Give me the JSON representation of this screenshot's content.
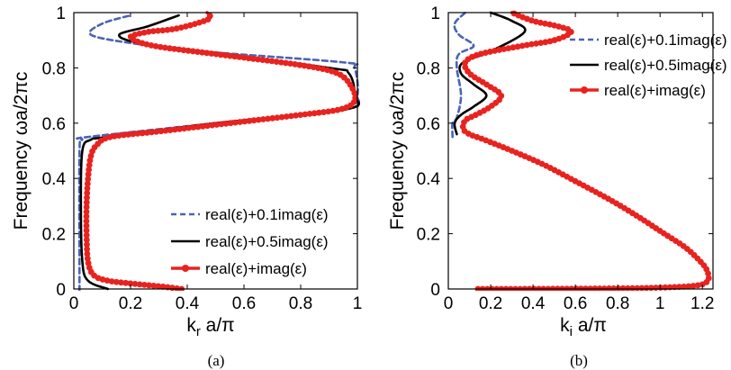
{
  "colors": {
    "dashed": "#4a64b4",
    "solid": "#000000",
    "dotted": "#e8231f"
  },
  "chart_data": [
    {
      "type": "line",
      "caption": "(a)",
      "xlabel_main": "k",
      "xlabel_sub": "r",
      "xlabel_rest": " a/π",
      "ylabel": "Frequency ωa/2πc",
      "xlim": [
        0,
        1
      ],
      "ylim": [
        0,
        1
      ],
      "xticks": [
        "0",
        "0.2",
        "0.4",
        "0.6",
        "0.8",
        "1"
      ],
      "yticks": [
        "0",
        "0.2",
        "0.4",
        "0.6",
        "0.8",
        "1"
      ],
      "legend_position": "bottom-right",
      "series": [
        {
          "name": "real(ε)+0.1imag(ε)",
          "style": "dashed",
          "points": [
            [
              0.02,
              0
            ],
            [
              0.02,
              0.05
            ],
            [
              0.02,
              0.5
            ],
            [
              0.03,
              0.54
            ],
            [
              0.05,
              0.55
            ],
            [
              0.5,
              0.6
            ],
            [
              0.96,
              0.65
            ],
            [
              1.0,
              0.7
            ],
            [
              0.99,
              0.8
            ],
            [
              0.95,
              0.82
            ],
            [
              0.45,
              0.86
            ],
            [
              0.2,
              0.89
            ],
            [
              0.06,
              0.92
            ],
            [
              0.1,
              0.96
            ],
            [
              0.2,
              0.99
            ]
          ]
        },
        {
          "name": "real(ε)+0.5imag(ε)",
          "style": "solid",
          "points": [
            [
              0.12,
              0
            ],
            [
              0.05,
              0.03
            ],
            [
              0.03,
              0.1
            ],
            [
              0.025,
              0.3
            ],
            [
              0.03,
              0.5
            ],
            [
              0.06,
              0.54
            ],
            [
              0.12,
              0.55
            ],
            [
              0.5,
              0.6
            ],
            [
              0.96,
              0.65
            ],
            [
              0.99,
              0.7
            ],
            [
              0.97,
              0.78
            ],
            [
              0.9,
              0.8
            ],
            [
              0.45,
              0.86
            ],
            [
              0.23,
              0.89
            ],
            [
              0.16,
              0.92
            ],
            [
              0.26,
              0.95
            ],
            [
              0.37,
              0.99
            ]
          ]
        },
        {
          "name": "real(ε)+imag(ε)",
          "style": "dotted",
          "points": [
            [
              0.38,
              0
            ],
            [
              0.3,
              0.01
            ],
            [
              0.2,
              0.02
            ],
            [
              0.12,
              0.03
            ],
            [
              0.07,
              0.05
            ],
            [
              0.05,
              0.1
            ],
            [
              0.045,
              0.2
            ],
            [
              0.045,
              0.3
            ],
            [
              0.05,
              0.4
            ],
            [
              0.06,
              0.48
            ],
            [
              0.08,
              0.52
            ],
            [
              0.13,
              0.55
            ],
            [
              0.3,
              0.57
            ],
            [
              0.55,
              0.6
            ],
            [
              0.8,
              0.63
            ],
            [
              0.94,
              0.65
            ],
            [
              0.99,
              0.68
            ],
            [
              0.98,
              0.73
            ],
            [
              0.93,
              0.78
            ],
            [
              0.8,
              0.81
            ],
            [
              0.5,
              0.85
            ],
            [
              0.28,
              0.88
            ],
            [
              0.2,
              0.91
            ],
            [
              0.26,
              0.93
            ],
            [
              0.35,
              0.94
            ],
            [
              0.43,
              0.96
            ],
            [
              0.48,
              0.98
            ],
            [
              0.47,
              1.0
            ]
          ]
        }
      ]
    },
    {
      "type": "line",
      "caption": "(b)",
      "xlabel_main": "k",
      "xlabel_sub": "i",
      "xlabel_rest": " a/π",
      "ylabel": "Frequency ωa/2πc",
      "xlim": [
        0,
        1.25
      ],
      "ylim": [
        0,
        1
      ],
      "xticks": [
        "0",
        "0.2",
        "0.4",
        "0.6",
        "0.8",
        "1",
        "1.2"
      ],
      "yticks": [
        "0",
        "0.2",
        "0.4",
        "0.6",
        "0.8",
        "1"
      ],
      "legend_position": "top-right",
      "series": [
        {
          "name": "real(ε)+0.1imag(ε)",
          "style": "dashed",
          "points": [
            [
              0.02,
              0.55
            ],
            [
              0.02,
              0.6
            ],
            [
              0.04,
              0.62
            ],
            [
              0.06,
              0.7
            ],
            [
              0.04,
              0.8
            ],
            [
              0.05,
              0.85
            ],
            [
              0.12,
              0.88
            ],
            [
              0.05,
              0.92
            ],
            [
              0.03,
              0.96
            ],
            [
              0.08,
              1.0
            ]
          ]
        },
        {
          "name": "real(ε)+0.5imag(ε)",
          "style": "solid",
          "points": [
            [
              0.04,
              0.56
            ],
            [
              0.03,
              0.6
            ],
            [
              0.06,
              0.63
            ],
            [
              0.12,
              0.66
            ],
            [
              0.18,
              0.7
            ],
            [
              0.12,
              0.74
            ],
            [
              0.06,
              0.78
            ],
            [
              0.07,
              0.82
            ],
            [
              0.2,
              0.86
            ],
            [
              0.36,
              0.93
            ],
            [
              0.3,
              0.97
            ],
            [
              0.2,
              1.0
            ]
          ]
        },
        {
          "name": "real(ε)+imag(ε)",
          "style": "dotted",
          "points": [
            [
              0.14,
              0
            ],
            [
              0.3,
              0.0
            ],
            [
              0.6,
              0.001
            ],
            [
              0.9,
              0.003
            ],
            [
              1.1,
              0.008
            ],
            [
              1.19,
              0.015
            ],
            [
              1.22,
              0.025
            ],
            [
              1.23,
              0.04
            ],
            [
              1.22,
              0.07
            ],
            [
              1.19,
              0.1
            ],
            [
              1.12,
              0.15
            ],
            [
              1.02,
              0.2
            ],
            [
              0.9,
              0.26
            ],
            [
              0.77,
              0.32
            ],
            [
              0.6,
              0.39
            ],
            [
              0.45,
              0.45
            ],
            [
              0.3,
              0.5
            ],
            [
              0.17,
              0.54
            ],
            [
              0.1,
              0.56
            ],
            [
              0.07,
              0.58
            ],
            [
              0.08,
              0.61
            ],
            [
              0.13,
              0.63
            ],
            [
              0.2,
              0.66
            ],
            [
              0.25,
              0.7
            ],
            [
              0.18,
              0.74
            ],
            [
              0.1,
              0.78
            ],
            [
              0.08,
              0.82
            ],
            [
              0.15,
              0.85
            ],
            [
              0.35,
              0.88
            ],
            [
              0.5,
              0.9
            ],
            [
              0.58,
              0.93
            ],
            [
              0.52,
              0.95
            ],
            [
              0.4,
              0.97
            ],
            [
              0.3,
              1.0
            ]
          ]
        }
      ]
    }
  ]
}
